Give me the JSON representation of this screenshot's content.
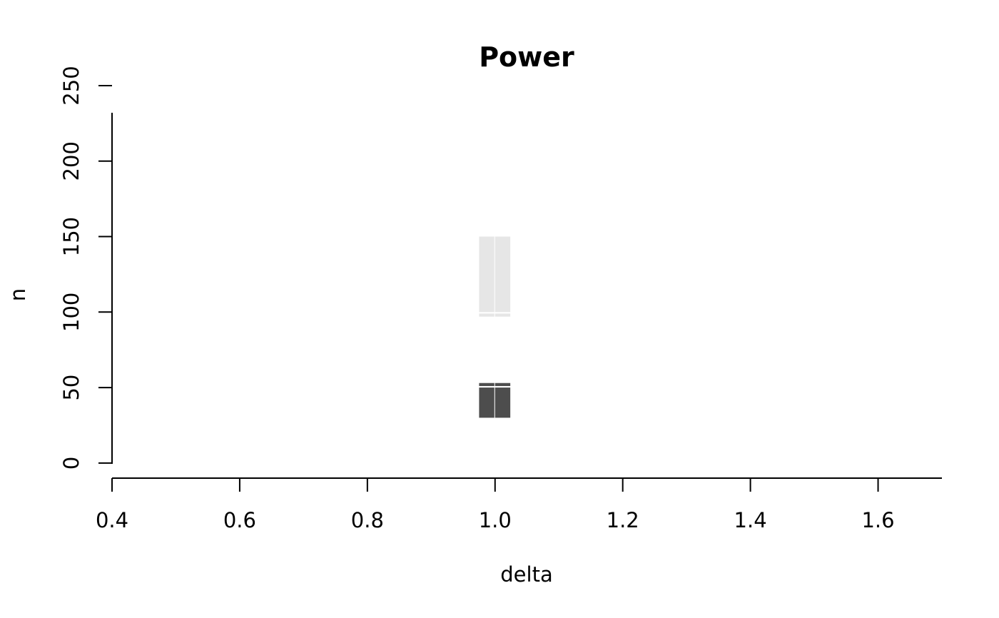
{
  "chart_data": {
    "type": "heatmap",
    "title": "Power",
    "xlabel": "delta",
    "ylabel": "n",
    "xlim": [
      0.4,
      1.7
    ],
    "ylim": [
      -10,
      250
    ],
    "xticks": [
      0.4,
      0.6,
      0.8,
      1.0,
      1.2,
      1.4,
      1.6
    ],
    "xtick_labels": [
      "0.4",
      "0.6",
      "0.8",
      "1.0",
      "1.2",
      "1.4",
      "1.6"
    ],
    "yticks": [
      0,
      50,
      100,
      150,
      200,
      250
    ],
    "ytick_labels": [
      "0",
      "50",
      "100",
      "150",
      "200",
      "250"
    ],
    "grid": false,
    "legend": "none",
    "series": [
      {
        "color": "#4d4d4d",
        "cells": [
          {
            "x0": 0.975,
            "x1": 1.0,
            "y0": 30,
            "y1": 50
          },
          {
            "x0": 1.0,
            "x1": 1.025,
            "y0": 30,
            "y1": 50
          },
          {
            "x0": 0.975,
            "x1": 1.0,
            "y0": 51,
            "y1": 53
          },
          {
            "x0": 1.0,
            "x1": 1.025,
            "y0": 51,
            "y1": 53
          }
        ]
      },
      {
        "color": "#e6e6e6",
        "cells": [
          {
            "x0": 0.975,
            "x1": 1.0,
            "y0": 100,
            "y1": 150
          },
          {
            "x0": 1.0,
            "x1": 1.025,
            "y0": 100,
            "y1": 150
          },
          {
            "x0": 0.975,
            "x1": 1.0,
            "y0": 97,
            "y1": 99
          },
          {
            "x0": 1.0,
            "x1": 1.025,
            "y0": 97,
            "y1": 99
          }
        ]
      }
    ]
  }
}
